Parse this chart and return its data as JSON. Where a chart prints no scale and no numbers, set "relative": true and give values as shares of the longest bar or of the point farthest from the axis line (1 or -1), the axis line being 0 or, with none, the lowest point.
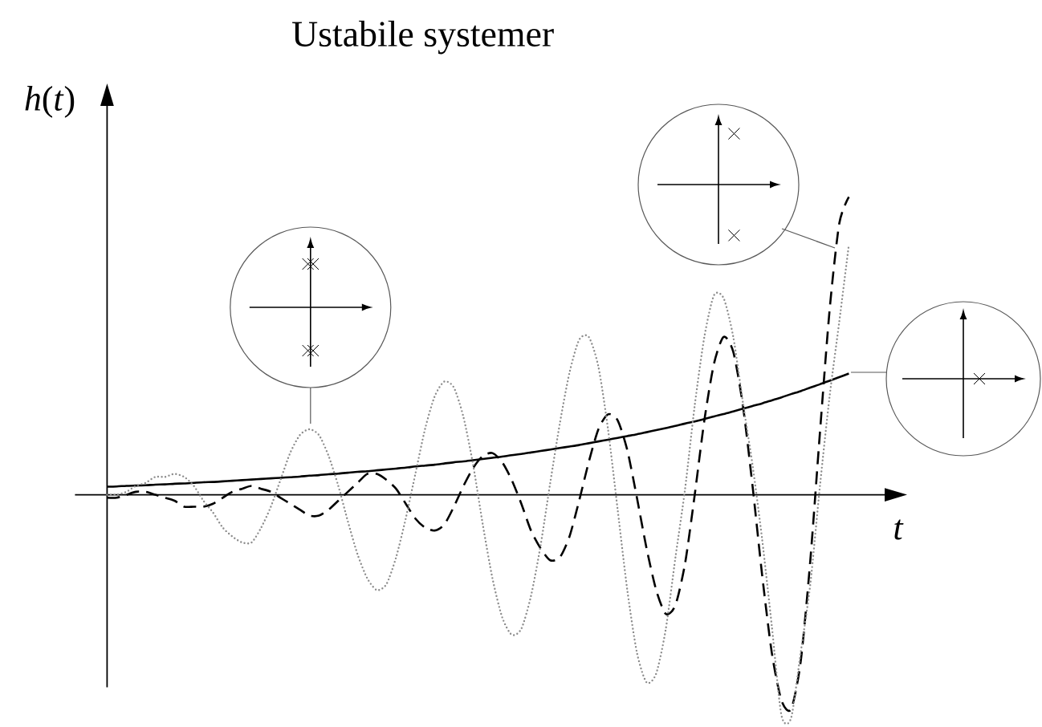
{
  "chart_data": {
    "type": "line",
    "title": "Ustabile systemer",
    "xlabel": "*t*",
    "ylabel": "*h*(*t*)",
    "relative": true,
    "categories": [
      null,
      null,
      null,
      null,
      null,
      null,
      null,
      null,
      null,
      null,
      null,
      null,
      null,
      null,
      null,
      null,
      null,
      null,
      null,
      null,
      null,
      null,
      null,
      null,
      null,
      null,
      null,
      null,
      null,
      null,
      null,
      null,
      null,
      null,
      null,
      null,
      null,
      null,
      null,
      null,
      null,
      null,
      null,
      null,
      null,
      null,
      null,
      null,
      null,
      null,
      null,
      null,
      null,
      null,
      null,
      null,
      null,
      null,
      null,
      null,
      null,
      null,
      null,
      null,
      null,
      null,
      null,
      null,
      null,
      null,
      null,
      null,
      null,
      null,
      null,
      null,
      null,
      null
    ],
    "series": [
      {
        "color": "#000000",
        "line_style": "solid",
        "values": [
          0.027,
          0.028,
          0.03,
          0.031,
          0.032,
          0.034,
          0.035,
          0.037,
          0.038,
          0.04,
          0.042,
          0.043,
          0.045,
          0.047,
          0.049,
          0.051,
          0.053,
          0.055,
          0.057,
          0.059,
          0.061,
          0.064,
          0.066,
          0.069,
          0.071,
          0.074,
          0.077,
          0.079,
          0.082,
          0.085,
          0.088,
          0.091,
          0.095,
          0.098,
          0.101,
          0.105,
          0.109,
          0.112,
          0.116,
          0.12,
          0.124,
          0.128,
          0.133,
          0.137,
          0.142,
          0.147,
          0.152,
          0.157,
          0.162,
          0.167,
          0.173,
          0.179,
          0.185,
          0.191,
          0.197,
          0.203,
          0.21,
          0.217,
          0.224,
          0.231,
          0.239,
          0.246,
          0.254,
          0.263,
          0.271,
          0.28,
          0.289,
          0.298,
          0.307,
          0.317,
          0.327,
          0.338,
          0.348,
          0.36,
          0.371,
          0.383,
          0.395,
          0.407
        ]
      },
      {
        "color": "#000000",
        "line_style": "dashed",
        "values": [
          -0.01,
          -0.01,
          0.0,
          0.01,
          0.01,
          0.0,
          -0.01,
          -0.02,
          -0.04,
          -0.04,
          -0.04,
          -0.03,
          -0.01,
          0.01,
          0.02,
          0.03,
          0.02,
          0.01,
          -0.01,
          -0.03,
          -0.05,
          -0.07,
          -0.07,
          -0.05,
          -0.02,
          0.01,
          0.04,
          0.07,
          0.07,
          0.05,
          0.02,
          -0.03,
          -0.08,
          -0.11,
          -0.12,
          -0.1,
          -0.04,
          0.03,
          0.09,
          0.13,
          0.14,
          0.11,
          0.05,
          -0.03,
          -0.12,
          -0.18,
          -0.22,
          -0.21,
          -0.14,
          -0.02,
          0.11,
          0.22,
          0.27,
          0.25,
          0.15,
          -0.01,
          -0.18,
          -0.32,
          -0.4,
          -0.37,
          -0.23,
          0.0,
          0.25,
          0.44,
          0.53,
          0.48,
          0.3,
          0.03,
          -0.27,
          -0.53,
          -0.69,
          -0.72,
          -0.56,
          -0.22,
          0.21,
          0.62,
          0.91,
          1.0
        ]
      },
      {
        "color": "#8c8c8c",
        "line_style": "dotted",
        "values": [
          0.0,
          0.0,
          0.01,
          0.03,
          0.04,
          0.06,
          0.06,
          0.07,
          0.06,
          0.03,
          -0.02,
          -0.06,
          -0.11,
          -0.14,
          -0.16,
          -0.16,
          -0.11,
          -0.04,
          0.05,
          0.14,
          0.2,
          0.22,
          0.2,
          0.13,
          0.03,
          -0.09,
          -0.2,
          -0.28,
          -0.32,
          -0.3,
          -0.21,
          -0.08,
          0.07,
          0.22,
          0.33,
          0.38,
          0.36,
          0.26,
          0.1,
          -0.1,
          -0.28,
          -0.41,
          -0.47,
          -0.45,
          -0.34,
          -0.17,
          0.04,
          0.24,
          0.41,
          0.52,
          0.53,
          0.43,
          0.22,
          -0.05,
          -0.32,
          -0.53,
          -0.63,
          -0.6,
          -0.45,
          -0.21,
          0.02,
          0.3,
          0.53,
          0.67,
          0.66,
          0.53,
          0.31,
          0.1,
          -0.15,
          -0.44,
          -0.74,
          -0.75,
          -0.53,
          -0.3,
          0.03,
          0.33,
          0.58,
          0.84
        ]
      }
    ]
  }
}
